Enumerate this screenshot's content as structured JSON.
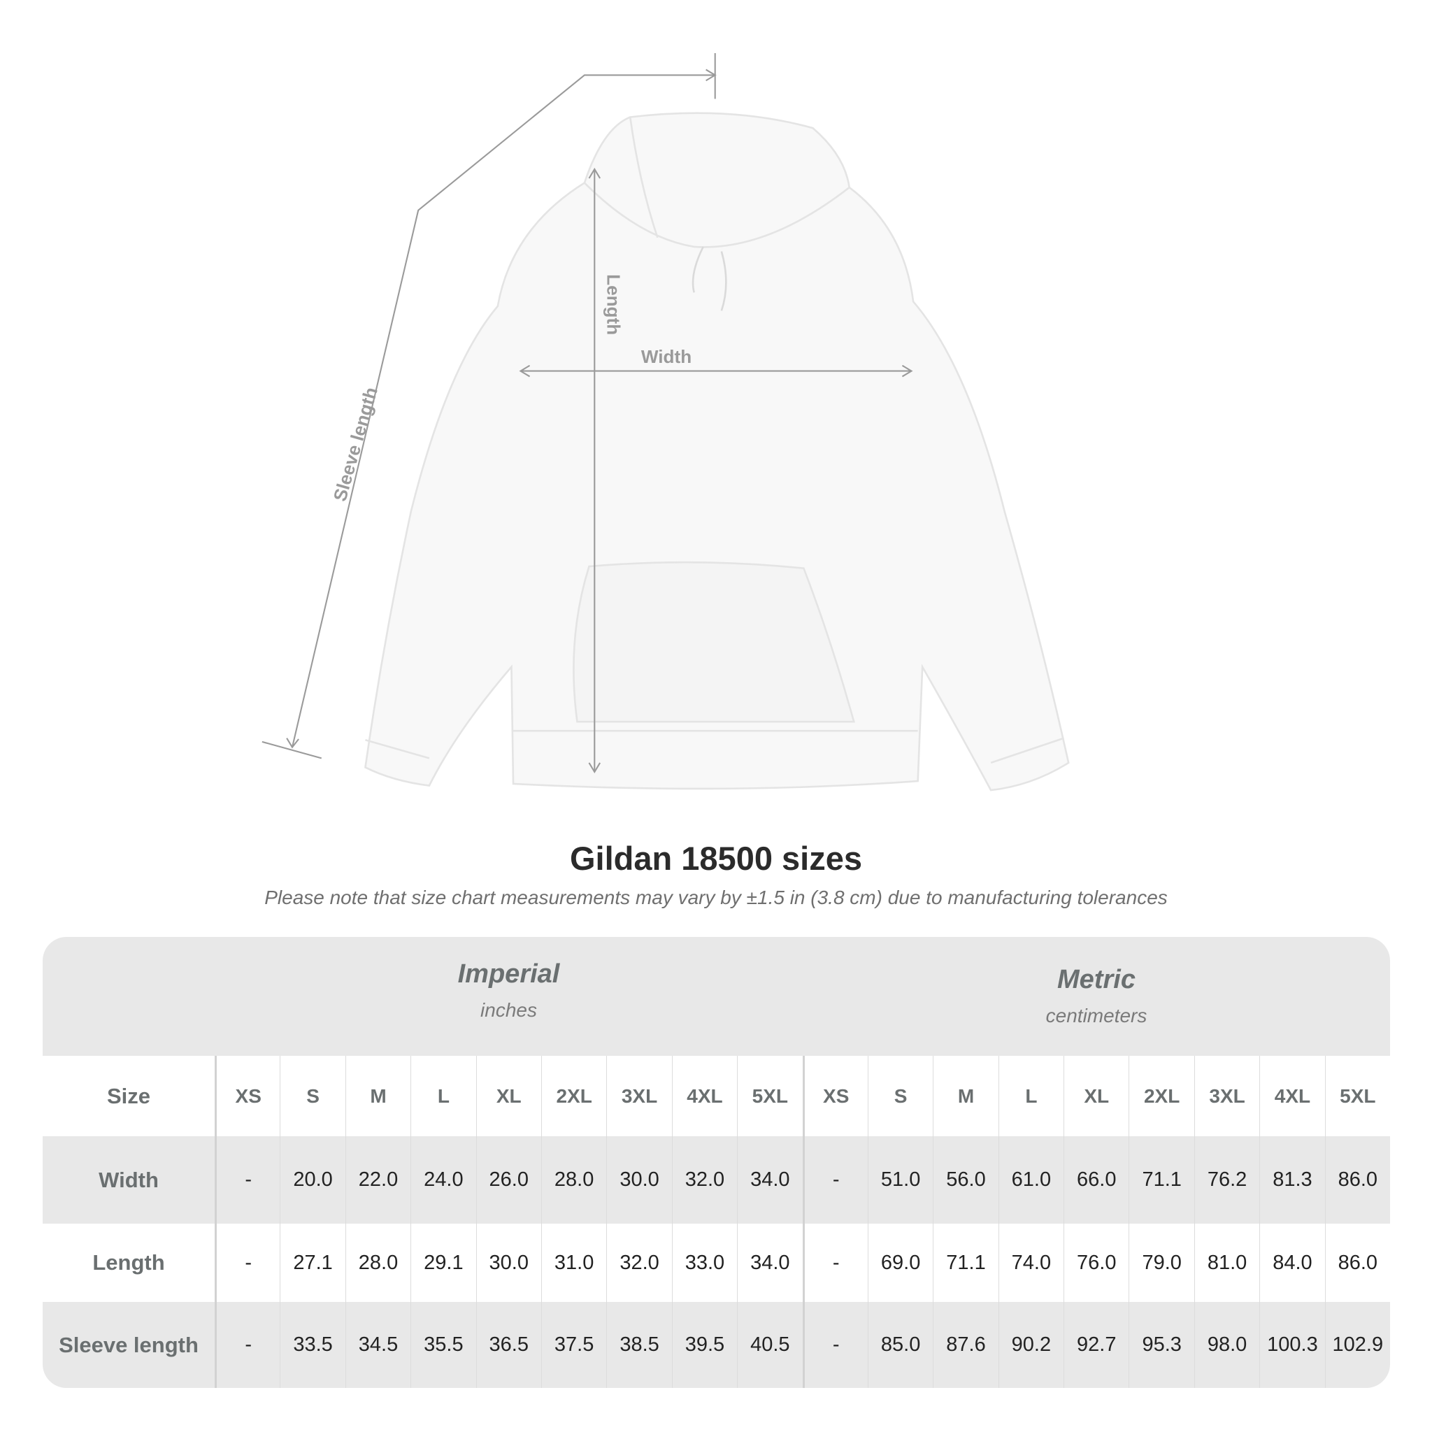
{
  "diagram": {
    "labels": {
      "sleeve": "Sleeve length",
      "length": "Length",
      "width": "Width"
    }
  },
  "title": "Gildan 18500 sizes",
  "note": "Please note that size chart measurements may vary by ±1.5 in (3.8 cm) due to manufacturing tolerances",
  "imperial": {
    "name": "Imperial",
    "unit": "inches"
  },
  "metric": {
    "name": "Metric",
    "unit": "centimeters"
  },
  "table": {
    "size_label": "Size",
    "sizes": [
      "XS",
      "S",
      "M",
      "L",
      "XL",
      "2XL",
      "3XL",
      "4XL",
      "5XL"
    ],
    "rows": [
      {
        "label": "Width",
        "imperial": [
          "-",
          "20.0",
          "22.0",
          "24.0",
          "26.0",
          "28.0",
          "30.0",
          "32.0",
          "34.0"
        ],
        "metric": [
          "-",
          "51.0",
          "56.0",
          "61.0",
          "66.0",
          "71.1",
          "76.2",
          "81.3",
          "86.0"
        ]
      },
      {
        "label": "Length",
        "imperial": [
          "-",
          "27.1",
          "28.0",
          "29.1",
          "30.0",
          "31.0",
          "32.0",
          "33.0",
          "34.0"
        ],
        "metric": [
          "-",
          "69.0",
          "71.1",
          "74.0",
          "76.0",
          "79.0",
          "81.0",
          "84.0",
          "86.0"
        ]
      },
      {
        "label": "Sleeve length",
        "imperial": [
          "-",
          "33.5",
          "34.5",
          "35.5",
          "36.5",
          "37.5",
          "38.5",
          "39.5",
          "40.5"
        ],
        "metric": [
          "-",
          "85.0",
          "87.6",
          "90.2",
          "92.7",
          "95.3",
          "98.0",
          "100.3",
          "102.9"
        ]
      }
    ]
  }
}
